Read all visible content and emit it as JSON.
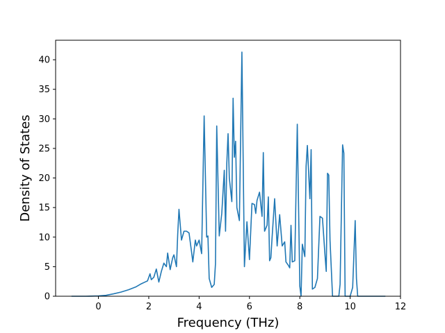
{
  "chart_data": {
    "type": "line",
    "title": "",
    "xlabel": "Frequency (THz)",
    "ylabel": "Density of States",
    "xlim": [
      -1.7,
      12.0
    ],
    "ylim": [
      0,
      43.3
    ],
    "xticks": [
      0,
      2,
      4,
      6,
      8,
      10,
      12
    ],
    "yticks": [
      0,
      5,
      10,
      15,
      20,
      25,
      30,
      35,
      40
    ],
    "grid": false,
    "legend": "none",
    "series": [
      {
        "color": "#1f77b4",
        "x": [
          -1.07,
          -0.5,
          0.0,
          0.3,
          0.6,
          0.9,
          1.2,
          1.5,
          1.7,
          1.85,
          1.95,
          2.05,
          2.1,
          2.2,
          2.3,
          2.4,
          2.5,
          2.6,
          2.7,
          2.75,
          2.85,
          2.95,
          3.0,
          3.1,
          3.15,
          3.2,
          3.3,
          3.4,
          3.5,
          3.6,
          3.7,
          3.75,
          3.85,
          3.9,
          4.0,
          4.1,
          4.2,
          4.3,
          4.35,
          4.4,
          4.5,
          4.6,
          4.65,
          4.7,
          4.8,
          4.9,
          5.0,
          5.05,
          5.1,
          5.15,
          5.2,
          5.3,
          5.35,
          5.4,
          5.45,
          5.5,
          5.6,
          5.7,
          5.8,
          5.9,
          6.0,
          6.1,
          6.2,
          6.25,
          6.3,
          6.4,
          6.5,
          6.55,
          6.6,
          6.7,
          6.75,
          6.8,
          6.85,
          6.9,
          7.0,
          7.1,
          7.2,
          7.3,
          7.4,
          7.45,
          7.55,
          7.6,
          7.65,
          7.7,
          7.8,
          7.9,
          8.0,
          8.05,
          8.1,
          8.2,
          8.25,
          8.3,
          8.4,
          8.45,
          8.5,
          8.6,
          8.7,
          8.8,
          8.9,
          9.0,
          9.05,
          9.1,
          9.15,
          9.2,
          9.3,
          9.4,
          9.5,
          9.55,
          9.6,
          9.7,
          9.75,
          9.8,
          9.9,
          10.0,
          10.1,
          10.2,
          10.25,
          10.3,
          10.35,
          10.45,
          10.6,
          11.0,
          11.4
        ],
        "y": [
          0.0,
          0.0,
          0.05,
          0.15,
          0.4,
          0.7,
          1.1,
          1.6,
          2.1,
          2.4,
          2.6,
          3.8,
          2.8,
          3.2,
          4.6,
          2.4,
          4.2,
          5.6,
          5.0,
          7.3,
          4.5,
          6.5,
          7.0,
          5.0,
          10.5,
          14.7,
          9.5,
          11.0,
          11.0,
          10.7,
          7.5,
          5.8,
          9.5,
          8.5,
          9.5,
          7.2,
          30.5,
          10.0,
          10.2,
          3.0,
          1.5,
          2.0,
          5.5,
          28.8,
          10.2,
          14.0,
          21.3,
          11.0,
          22.5,
          27.5,
          20.0,
          16.0,
          33.5,
          23.5,
          26.2,
          15.0,
          12.8,
          41.3,
          5.0,
          12.6,
          6.2,
          15.7,
          15.5,
          14.0,
          16.2,
          17.6,
          13.5,
          24.3,
          11.0,
          12.0,
          16.8,
          6.0,
          6.5,
          10.0,
          16.5,
          8.5,
          13.8,
          8.5,
          9.2,
          5.8,
          5.2,
          4.8,
          12.0,
          5.8,
          6.0,
          29.1,
          1.7,
          0.0,
          8.8,
          6.7,
          22.0,
          25.5,
          16.5,
          24.8,
          1.2,
          1.5,
          3.0,
          13.5,
          13.2,
          7.0,
          4.2,
          20.8,
          20.5,
          9.5,
          0.0,
          0.0,
          0.0,
          0.0,
          2.0,
          25.6,
          24.2,
          0.0,
          0.0,
          0.0,
          1.5,
          12.8,
          3.0,
          0.0,
          0.0,
          0.0,
          0.0,
          0.0,
          0.0
        ]
      }
    ]
  }
}
